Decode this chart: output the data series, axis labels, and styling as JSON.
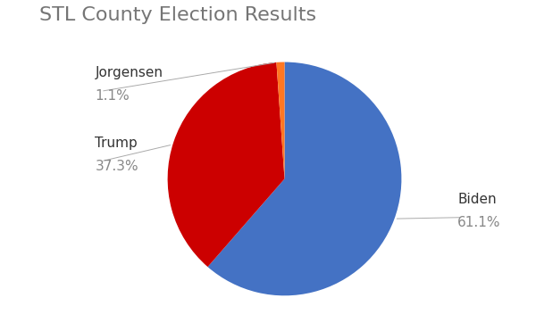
{
  "title": "STL County Election Results",
  "title_fontsize": 16,
  "title_color": "#757575",
  "candidates": [
    "Biden",
    "Trump",
    "Jorgensen"
  ],
  "values": [
    61.1,
    37.3,
    1.1
  ],
  "colors": [
    "#4472C4",
    "#CC0000",
    "#FF7722"
  ],
  "small_color": "#33AA44",
  "background_color": "#ffffff",
  "startangle": 90,
  "label_name_color": "#333333",
  "label_pct_color": "#888888",
  "label_fontsize": 11,
  "line_color": "#aaaaaa"
}
